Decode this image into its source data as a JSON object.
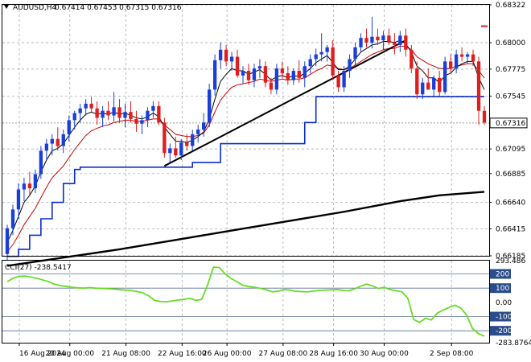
{
  "header": {
    "symbol": "AUDUSD,H4",
    "ohlc": "0.67414 0.67453 0.67315 0.67316"
  },
  "colors": {
    "bull": "#1a3fd9",
    "bear": "#e11d1d",
    "ema_fast": "#000000",
    "ema_red": "#cc0000",
    "kijun": "#0a2ccc",
    "ma_long": "#000000",
    "cci": "#66dd22",
    "grid": "#9aa0aa",
    "current_price_bg": "#ffffff"
  },
  "chart_data": [
    {
      "type": "candlestick",
      "title": "",
      "ylim": [
        0.66185,
        0.68322
      ],
      "y_ticks": [
        "0.68322",
        "0.68000",
        "0.67775",
        "0.67545",
        "0.67316",
        "0.67095",
        "0.66885",
        "0.66640",
        "0.66415",
        "0.66185"
      ],
      "current_price": "0.67316",
      "x_ticks": [
        "16 Aug 2024",
        "20 Aug 00:00",
        "21 Aug 08:00",
        "22 Aug 16:00",
        "26 Aug 00:00",
        "27 Aug 08:00",
        "28 Aug 16:00",
        "30 Aug 00:00",
        "2 Sep 08:00"
      ],
      "candles": [
        [
          0.662,
          0.6645,
          0.6615,
          0.6642
        ],
        [
          0.6642,
          0.6662,
          0.6636,
          0.6658
        ],
        [
          0.6658,
          0.668,
          0.665,
          0.6675
        ],
        [
          0.6675,
          0.6685,
          0.6665,
          0.668
        ],
        [
          0.668,
          0.669,
          0.667,
          0.6676
        ],
        [
          0.6676,
          0.6692,
          0.6672,
          0.6688
        ],
        [
          0.6688,
          0.6712,
          0.6684,
          0.6708
        ],
        [
          0.6708,
          0.6718,
          0.67,
          0.6714
        ],
        [
          0.6714,
          0.6722,
          0.6704,
          0.6718
        ],
        [
          0.6718,
          0.6728,
          0.6708,
          0.6712
        ],
        [
          0.6712,
          0.6726,
          0.6706,
          0.6722
        ],
        [
          0.6722,
          0.6738,
          0.6716,
          0.6734
        ],
        [
          0.6734,
          0.6742,
          0.6726,
          0.674
        ],
        [
          0.674,
          0.6748,
          0.6732,
          0.6744
        ],
        [
          0.6744,
          0.6752,
          0.6738,
          0.6748
        ],
        [
          0.6748,
          0.6754,
          0.674,
          0.6744
        ],
        [
          0.6744,
          0.675,
          0.673,
          0.6736
        ],
        [
          0.6736,
          0.6746,
          0.6728,
          0.6742
        ],
        [
          0.6742,
          0.675,
          0.6734,
          0.6738
        ],
        [
          0.6738,
          0.6758,
          0.6733,
          0.6745
        ],
        [
          0.6745,
          0.6752,
          0.6732,
          0.6736
        ],
        [
          0.6736,
          0.6748,
          0.6728,
          0.6741
        ],
        [
          0.6741,
          0.675,
          0.6732,
          0.6735
        ],
        [
          0.6735,
          0.6742,
          0.6724,
          0.6731
        ],
        [
          0.6731,
          0.6738,
          0.6722,
          0.6734
        ],
        [
          0.6734,
          0.6745,
          0.6728,
          0.6742
        ],
        [
          0.6742,
          0.675,
          0.6736,
          0.6746
        ],
        [
          0.6746,
          0.675,
          0.673,
          0.6732
        ],
        [
          0.6732,
          0.6736,
          0.6702,
          0.6706
        ],
        [
          0.6706,
          0.6714,
          0.6698,
          0.671
        ],
        [
          0.671,
          0.672,
          0.6702,
          0.6704
        ],
        [
          0.6704,
          0.6718,
          0.67,
          0.6715
        ],
        [
          0.6715,
          0.6722,
          0.6708,
          0.6712
        ],
        [
          0.6712,
          0.6726,
          0.6708,
          0.6722
        ],
        [
          0.6722,
          0.673,
          0.6715,
          0.6726
        ],
        [
          0.6726,
          0.674,
          0.672,
          0.6732
        ],
        [
          0.6732,
          0.6765,
          0.6728,
          0.676
        ],
        [
          0.676,
          0.679,
          0.6755,
          0.6785
        ],
        [
          0.6785,
          0.68,
          0.6778,
          0.6794
        ],
        [
          0.6794,
          0.6798,
          0.678,
          0.6784
        ],
        [
          0.6784,
          0.6792,
          0.6776,
          0.6788
        ],
        [
          0.6788,
          0.6794,
          0.677,
          0.6772
        ],
        [
          0.6772,
          0.678,
          0.6765,
          0.6776
        ],
        [
          0.6776,
          0.6782,
          0.6764,
          0.6768
        ],
        [
          0.6768,
          0.6782,
          0.6762,
          0.6778
        ],
        [
          0.6778,
          0.6786,
          0.677,
          0.678
        ],
        [
          0.678,
          0.6784,
          0.6762,
          0.6766
        ],
        [
          0.6766,
          0.677,
          0.6756,
          0.676
        ],
        [
          0.676,
          0.6782,
          0.6756,
          0.6778
        ],
        [
          0.6778,
          0.6784,
          0.677,
          0.6774
        ],
        [
          0.6774,
          0.678,
          0.6764,
          0.6768
        ],
        [
          0.6768,
          0.6778,
          0.6764,
          0.6776
        ],
        [
          0.6776,
          0.6785,
          0.6766,
          0.677
        ],
        [
          0.677,
          0.6784,
          0.6762,
          0.678
        ],
        [
          0.678,
          0.679,
          0.6774,
          0.6786
        ],
        [
          0.6786,
          0.6795,
          0.678,
          0.679
        ],
        [
          0.679,
          0.6808,
          0.6784,
          0.6792
        ],
        [
          0.6792,
          0.6798,
          0.6784,
          0.6796
        ],
        [
          0.6796,
          0.6802,
          0.6768,
          0.6772
        ],
        [
          0.6772,
          0.6776,
          0.6758,
          0.6762
        ],
        [
          0.6762,
          0.678,
          0.6758,
          0.6776
        ],
        [
          0.6776,
          0.679,
          0.677,
          0.6786
        ],
        [
          0.6786,
          0.68,
          0.678,
          0.6796
        ],
        [
          0.6796,
          0.6808,
          0.6792,
          0.6804
        ],
        [
          0.6804,
          0.6812,
          0.6796,
          0.68
        ],
        [
          0.68,
          0.6822,
          0.6795,
          0.6805
        ],
        [
          0.6805,
          0.6812,
          0.6798,
          0.6802
        ],
        [
          0.6802,
          0.681,
          0.6794,
          0.6806
        ],
        [
          0.6806,
          0.6812,
          0.6798,
          0.68
        ],
        [
          0.68,
          0.6808,
          0.679,
          0.6798
        ],
        [
          0.6798,
          0.681,
          0.6792,
          0.6806
        ],
        [
          0.6806,
          0.6812,
          0.6788,
          0.6794
        ],
        [
          0.6794,
          0.6798,
          0.6774,
          0.6778
        ],
        [
          0.6778,
          0.6784,
          0.6752,
          0.6756
        ],
        [
          0.6756,
          0.677,
          0.6752,
          0.6766
        ],
        [
          0.6766,
          0.6778,
          0.676,
          0.676
        ],
        [
          0.676,
          0.6772,
          0.6754,
          0.677
        ],
        [
          0.677,
          0.6776,
          0.6754,
          0.6758
        ],
        [
          0.6758,
          0.6788,
          0.6756,
          0.6784
        ],
        [
          0.6784,
          0.679,
          0.6774,
          0.6778
        ],
        [
          0.6778,
          0.6794,
          0.6774,
          0.679
        ],
        [
          0.679,
          0.6796,
          0.6784,
          0.6788
        ],
        [
          0.6788,
          0.6792,
          0.6782,
          0.679
        ],
        [
          0.679,
          0.6794,
          0.678,
          0.6784
        ],
        [
          0.6784,
          0.6788,
          0.673,
          0.6742
        ],
        [
          0.6742,
          0.6746,
          0.673,
          0.6732
        ]
      ],
      "ema_fast": [
        0.663,
        0.664,
        0.6652,
        0.6664,
        0.667,
        0.6678,
        0.669,
        0.67,
        0.6708,
        0.671,
        0.6714,
        0.6721,
        0.6728,
        0.6734,
        0.6739,
        0.6741,
        0.6739,
        0.674,
        0.6739,
        0.6741,
        0.6739,
        0.674,
        0.6738,
        0.6736,
        0.6735,
        0.6737,
        0.674,
        0.6737,
        0.6728,
        0.6722,
        0.6716,
        0.6716,
        0.6715,
        0.6717,
        0.672,
        0.6724,
        0.6735,
        0.6752,
        0.6767,
        0.6773,
        0.6778,
        0.6776,
        0.6776,
        0.6773,
        0.6775,
        0.6777,
        0.6773,
        0.6768,
        0.6771,
        0.6772,
        0.677,
        0.6772,
        0.6771,
        0.6774,
        0.6778,
        0.6783,
        0.6786,
        0.6789,
        0.6783,
        0.6777,
        0.6777,
        0.678,
        0.6786,
        0.6792,
        0.6795,
        0.6798,
        0.6799,
        0.6801,
        0.6801,
        0.68,
        0.6802,
        0.6799,
        0.6792,
        0.678,
        0.6776,
        0.677,
        0.677,
        0.6766,
        0.6772,
        0.6774,
        0.6779,
        0.6782,
        0.6784,
        0.6784,
        0.677,
        0.676
      ],
      "ema_slow": [
        0.6622,
        0.6628,
        0.6636,
        0.6645,
        0.6652,
        0.6659,
        0.6668,
        0.6677,
        0.6685,
        0.669,
        0.6695,
        0.6702,
        0.6709,
        0.6715,
        0.6721,
        0.6725,
        0.6727,
        0.6729,
        0.673,
        0.6732,
        0.6733,
        0.6734,
        0.6734,
        0.6733,
        0.6733,
        0.6734,
        0.6735,
        0.6735,
        0.673,
        0.6726,
        0.6722,
        0.6721,
        0.672,
        0.672,
        0.6721,
        0.6723,
        0.673,
        0.6741,
        0.6751,
        0.6757,
        0.6762,
        0.6764,
        0.6765,
        0.6766,
        0.6767,
        0.6769,
        0.6768,
        0.6767,
        0.6768,
        0.6769,
        0.6768,
        0.6769,
        0.6769,
        0.677,
        0.6773,
        0.6776,
        0.6778,
        0.6781,
        0.678,
        0.6778,
        0.6777,
        0.6778,
        0.6781,
        0.6784,
        0.6787,
        0.679,
        0.6792,
        0.6794,
        0.6795,
        0.6795,
        0.6797,
        0.6797,
        0.6794,
        0.6788,
        0.6785,
        0.6782,
        0.678,
        0.6778,
        0.6778,
        0.6778,
        0.678,
        0.6781,
        0.6782,
        0.6782,
        0.6776,
        0.677
      ],
      "kijun": [
        0.6618,
        0.6618,
        0.6624,
        0.6624,
        0.6636,
        0.6636,
        0.665,
        0.665,
        0.6664,
        0.6664,
        0.668,
        0.668,
        0.6692,
        0.6694,
        0.6694,
        0.6694,
        0.6694,
        0.6694,
        0.6694,
        0.6694,
        0.6694,
        0.6694,
        0.6694,
        0.6694,
        0.6694,
        0.6694,
        0.6694,
        0.6694,
        0.6694,
        0.6694,
        0.6694,
        0.6694,
        0.6694,
        0.6698,
        0.6698,
        0.6698,
        0.6698,
        0.6698,
        0.6714,
        0.6714,
        0.6714,
        0.6714,
        0.6714,
        0.6714,
        0.6714,
        0.6714,
        0.6714,
        0.6714,
        0.6714,
        0.6714,
        0.6714,
        0.6714,
        0.6714,
        0.6732,
        0.6732,
        0.6754,
        0.6754,
        0.6754,
        0.6754,
        0.6754,
        0.6754,
        0.6754,
        0.6754,
        0.6754,
        0.6754,
        0.6754,
        0.6754,
        0.6754,
        0.6754,
        0.6754,
        0.6754,
        0.6754,
        0.6754,
        0.6754,
        0.6754,
        0.6754,
        0.6754,
        0.6754,
        0.6754,
        0.6754,
        0.6754,
        0.6754,
        0.6754,
        0.6754,
        0.6754,
        0.6754
      ],
      "ma_long": [
        [
          0,
          0.661
        ],
        [
          10,
          0.6617
        ],
        [
          20,
          0.6624
        ],
        [
          30,
          0.6632
        ],
        [
          40,
          0.664
        ],
        [
          50,
          0.6648
        ],
        [
          60,
          0.6656
        ],
        [
          70,
          0.6665
        ],
        [
          77,
          0.667
        ],
        [
          85,
          0.6673
        ]
      ],
      "trendline": [
        [
          28,
          0.6695
        ],
        [
          71,
          0.6802
        ]
      ],
      "marker": [
        85,
        0.6814
      ]
    },
    {
      "type": "line",
      "title": "CCI(27) -238.5417",
      "ylim": [
        -283.8764,
        293.486
      ],
      "y_ticks": [
        "293.486",
        "200",
        "100",
        "0.00",
        "-100",
        "-200",
        "-283.8764"
      ],
      "levels": [
        200,
        100,
        -100,
        -200
      ],
      "values": [
        145,
        170,
        182,
        185,
        178,
        170,
        158,
        146,
        128,
        118,
        112,
        106,
        102,
        100,
        104,
        100,
        98,
        96,
        94,
        90,
        86,
        84,
        76,
        68,
        46,
        14,
        6,
        4,
        10,
        16,
        22,
        28,
        14,
        20,
        120,
        248,
        245,
        200,
        168,
        145,
        120,
        112,
        106,
        98,
        88,
        74,
        78,
        90,
        86,
        78,
        76,
        74,
        80,
        84,
        86,
        88,
        90,
        84,
        82,
        95,
        114,
        128,
        116,
        98,
        106,
        90,
        82,
        74,
        30,
        -120,
        -142,
        -112,
        -124,
        -76,
        -54,
        -36,
        -20,
        -40,
        -90,
        -185,
        -220,
        -238.5417
      ]
    }
  ]
}
